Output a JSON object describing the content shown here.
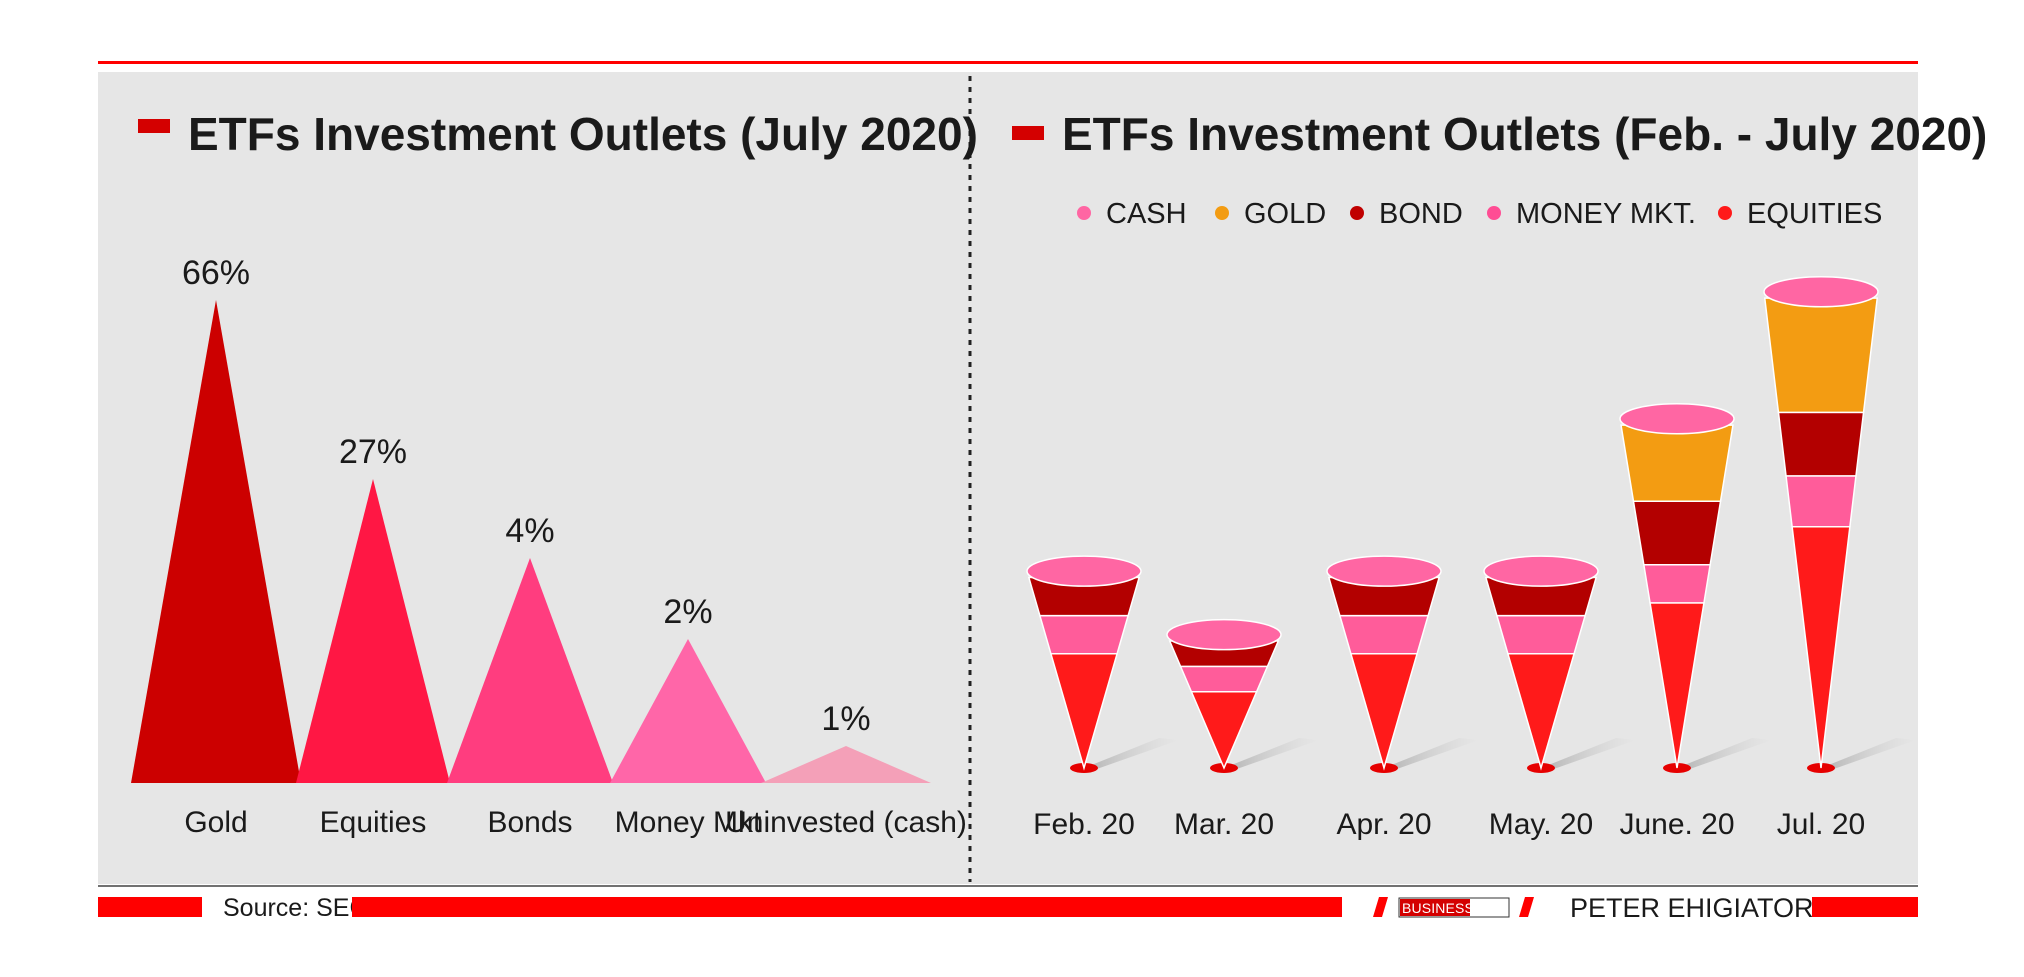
{
  "left_panel": {
    "title": "ETFs Investment Outlets (July 2020)"
  },
  "right_panel": {
    "title": "ETFs Investment Outlets (Feb. - July 2020)",
    "legend": [
      {
        "label": "CASH",
        "color": "#ff66a3"
      },
      {
        "label": "GOLD",
        "color": "#f39c12"
      },
      {
        "label": "BOND",
        "color": "#c00000"
      },
      {
        "label": "MONEY MKT.",
        "color": "#ff4d94"
      },
      {
        "label": "EQUITIES",
        "color": "#ff1a1a"
      }
    ]
  },
  "footer": {
    "source": "Source: SEC",
    "publisher": "BUSINESS DAY",
    "author": "PETER EHIGIATOR"
  },
  "colors": {
    "accent_red": "#ff0000",
    "panel_bg": "#e6e6e6",
    "gold": "#cc0000",
    "equities": "#ff1744",
    "bonds": "#ff3d7f",
    "money_mkt": "#ff66a8",
    "cash": "#f4a0b8"
  },
  "chart_data": [
    {
      "type": "bar",
      "categories": [
        "Gold",
        "Equities",
        "Bonds",
        "Money Mkt",
        "Uninvested (cash)"
      ],
      "values": [
        66,
        27,
        4,
        2,
        1
      ],
      "data_labels": [
        "66%",
        "27%",
        "4%",
        "2%",
        "1%"
      ],
      "title": "ETFs Investment Outlets (July 2020)",
      "ylim": [
        0,
        70
      ]
    },
    {
      "type": "bar",
      "stacked": true,
      "categories": [
        "Feb. 20",
        "Mar. 20",
        "Apr. 20",
        "May. 20",
        "June. 20",
        "Jul. 20"
      ],
      "series": [
        {
          "name": "EQUITIES",
          "values": [
            9,
            6,
            9,
            9,
            13,
            19
          ]
        },
        {
          "name": "MONEY MKT.",
          "values": [
            3,
            2,
            3,
            3,
            3,
            4
          ]
        },
        {
          "name": "BOND",
          "values": [
            3,
            2,
            3,
            3,
            5,
            5
          ]
        },
        {
          "name": "GOLD",
          "values": [
            0,
            0,
            0,
            0,
            6,
            9
          ]
        },
        {
          "name": "CASH",
          "values": [
            0.5,
            0.5,
            0.5,
            0.5,
            0.5,
            0.5
          ]
        }
      ],
      "title": "ETFs Investment Outlets (Feb. - July 2020)",
      "legend": "top"
    }
  ]
}
